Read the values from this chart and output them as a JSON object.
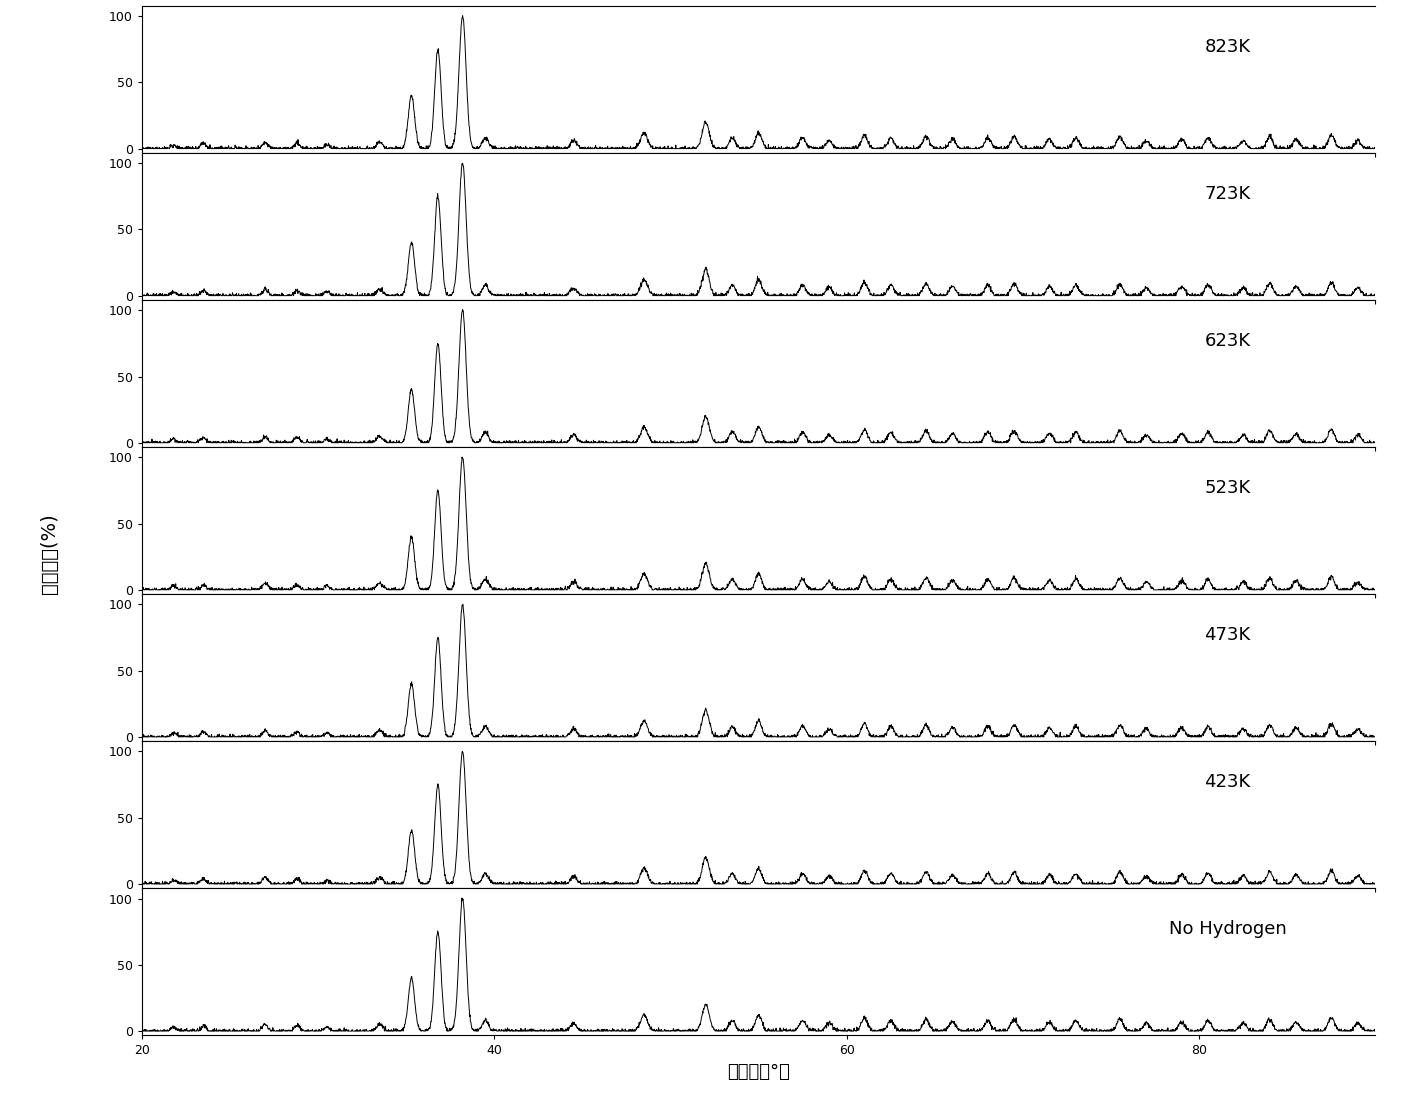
{
  "labels": [
    "823K",
    "723K",
    "623K",
    "523K",
    "473K",
    "423K",
    "No Hydrogen"
  ],
  "x_min": 20,
  "x_max": 90,
  "y_min": 0,
  "y_max": 100,
  "yticks": [
    0,
    50,
    100
  ],
  "xticks": [
    20,
    40,
    60,
    80
  ],
  "xlabel": "衍射角（°）",
  "ylabel": "衍射强度(%)",
  "line_color": "#000000",
  "background_color": "#ffffff",
  "peak_positions": [
    21.8,
    23.5,
    27.0,
    28.8,
    30.5,
    33.5,
    35.3,
    36.8,
    38.2,
    39.5,
    44.5,
    48.5,
    52.0,
    53.5,
    55.0,
    57.5,
    59.0,
    61.0,
    62.5,
    64.5,
    66.0,
    68.0,
    69.5,
    71.5,
    73.0,
    75.5,
    77.0,
    79.0,
    80.5,
    82.5,
    84.0,
    85.5,
    87.5,
    89.0
  ],
  "peak_heights_base": [
    3,
    4,
    5,
    4,
    3,
    5,
    40,
    75,
    100,
    8,
    6,
    12,
    20,
    8,
    12,
    8,
    6,
    10,
    8,
    9,
    7,
    8,
    9,
    7,
    8,
    9,
    6,
    7,
    8,
    6,
    9,
    7,
    10,
    6
  ],
  "peak_widths": [
    0.15,
    0.15,
    0.15,
    0.15,
    0.15,
    0.18,
    0.18,
    0.18,
    0.2,
    0.18,
    0.18,
    0.2,
    0.2,
    0.18,
    0.18,
    0.18,
    0.18,
    0.18,
    0.18,
    0.18,
    0.18,
    0.18,
    0.18,
    0.18,
    0.18,
    0.18,
    0.18,
    0.18,
    0.18,
    0.18,
    0.18,
    0.18,
    0.18,
    0.18
  ],
  "noise_level": 0.8,
  "fig_width": 14.18,
  "fig_height": 11.07,
  "dpi": 100,
  "label_fontsize": 13,
  "tick_fontsize": 9,
  "axis_fontsize": 13
}
